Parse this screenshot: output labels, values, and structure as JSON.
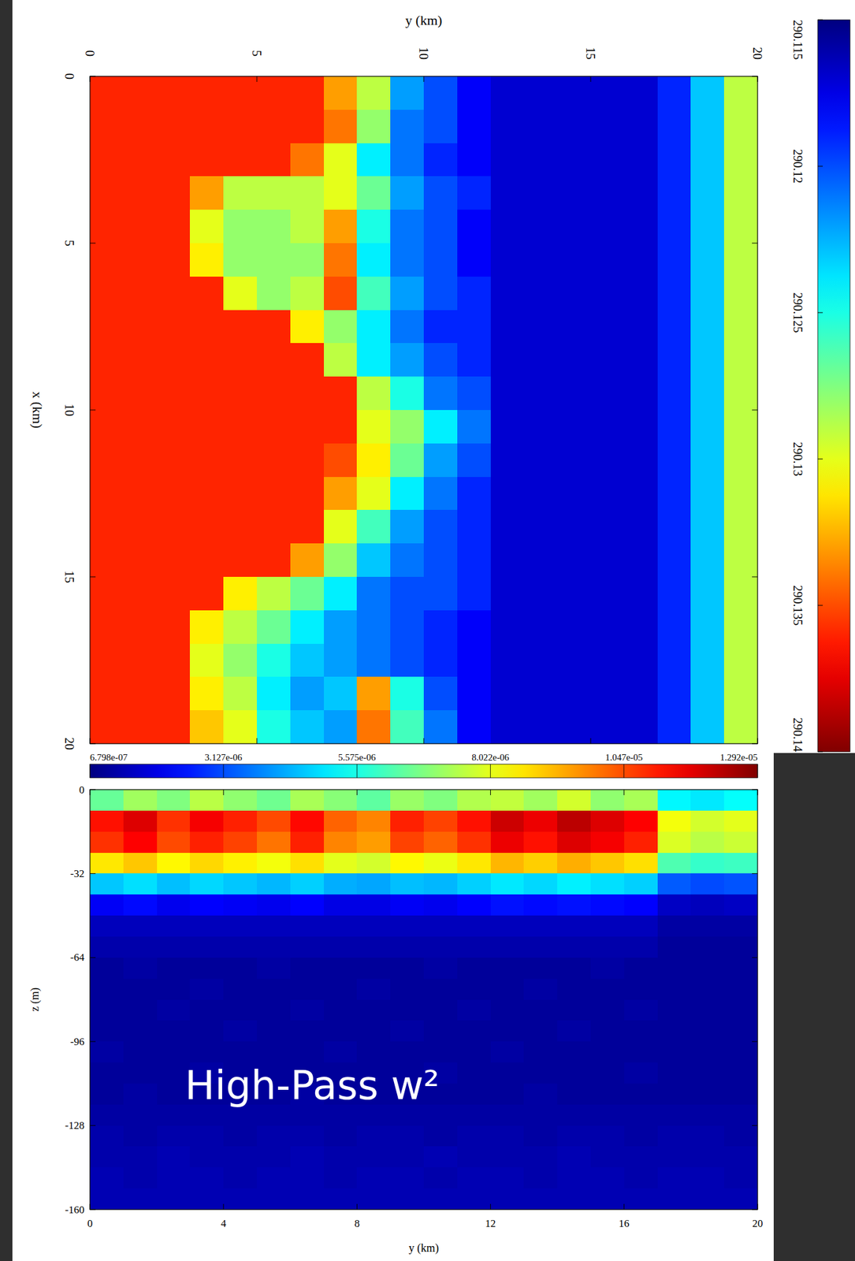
{
  "chart_data": [
    {
      "type": "heatmap",
      "x_label": "y (km)",
      "y_label": "x (km)",
      "xlim": [
        0,
        20
      ],
      "ylim": [
        20,
        0
      ],
      "xticks": [
        0,
        5,
        10,
        15,
        20
      ],
      "yticks": [
        0,
        5,
        10,
        15,
        20
      ],
      "colorbar": {
        "range": [
          290.115,
          290.14
        ],
        "ticks": [
          290.115,
          290.12,
          290.125,
          290.13,
          290.135,
          290.14
        ]
      },
      "cells": [
        [
          290.136,
          290.136,
          290.136,
          290.136,
          290.136,
          290.136,
          290.136,
          290.133,
          290.129,
          290.122,
          290.12,
          290.118,
          290.117,
          290.117,
          290.117,
          290.117,
          290.117,
          290.119,
          290.123,
          290.129
        ],
        [
          290.136,
          290.136,
          290.136,
          290.136,
          290.136,
          290.136,
          290.136,
          290.134,
          290.128,
          290.121,
          290.12,
          290.118,
          290.117,
          290.117,
          290.117,
          290.117,
          290.117,
          290.119,
          290.123,
          290.129
        ],
        [
          290.136,
          290.136,
          290.136,
          290.136,
          290.136,
          290.136,
          290.134,
          290.13,
          290.124,
          290.121,
          290.119,
          290.118,
          290.117,
          290.117,
          290.117,
          290.117,
          290.117,
          290.119,
          290.123,
          290.129
        ],
        [
          290.136,
          290.136,
          290.136,
          290.133,
          290.129,
          290.129,
          290.129,
          290.13,
          290.127,
          290.122,
          290.12,
          290.119,
          290.117,
          290.117,
          290.117,
          290.117,
          290.117,
          290.119,
          290.123,
          290.129
        ],
        [
          290.136,
          290.136,
          290.136,
          290.13,
          290.128,
          290.128,
          290.129,
          290.133,
          290.125,
          290.121,
          290.12,
          290.118,
          290.117,
          290.117,
          290.117,
          290.117,
          290.117,
          290.119,
          290.123,
          290.129
        ],
        [
          290.136,
          290.136,
          290.136,
          290.131,
          290.128,
          290.128,
          290.128,
          290.134,
          290.124,
          290.121,
          290.12,
          290.118,
          290.117,
          290.117,
          290.117,
          290.117,
          290.117,
          290.119,
          290.123,
          290.129
        ],
        [
          290.136,
          290.136,
          290.136,
          290.136,
          290.13,
          290.128,
          290.129,
          290.135,
          290.126,
          290.122,
          290.12,
          290.119,
          290.117,
          290.117,
          290.117,
          290.117,
          290.117,
          290.119,
          290.123,
          290.129
        ],
        [
          290.136,
          290.136,
          290.136,
          290.136,
          290.136,
          290.136,
          290.131,
          290.128,
          290.124,
          290.121,
          290.119,
          290.119,
          290.117,
          290.117,
          290.117,
          290.117,
          290.117,
          290.119,
          290.123,
          290.129
        ],
        [
          290.136,
          290.136,
          290.136,
          290.136,
          290.136,
          290.136,
          290.136,
          290.129,
          290.124,
          290.122,
          290.12,
          290.119,
          290.117,
          290.117,
          290.117,
          290.117,
          290.117,
          290.119,
          290.123,
          290.129
        ],
        [
          290.136,
          290.136,
          290.136,
          290.136,
          290.136,
          290.136,
          290.136,
          290.136,
          290.129,
          290.125,
          290.121,
          290.12,
          290.117,
          290.117,
          290.117,
          290.117,
          290.117,
          290.119,
          290.123,
          290.129
        ],
        [
          290.136,
          290.136,
          290.136,
          290.136,
          290.136,
          290.136,
          290.136,
          290.136,
          290.13,
          290.128,
          290.124,
          290.121,
          290.117,
          290.117,
          290.117,
          290.117,
          290.117,
          290.119,
          290.123,
          290.129
        ],
        [
          290.136,
          290.136,
          290.136,
          290.136,
          290.136,
          290.136,
          290.136,
          290.135,
          290.131,
          290.127,
          290.122,
          290.12,
          290.117,
          290.117,
          290.117,
          290.117,
          290.117,
          290.119,
          290.123,
          290.129
        ],
        [
          290.136,
          290.136,
          290.136,
          290.136,
          290.136,
          290.136,
          290.136,
          290.133,
          290.13,
          290.124,
          290.121,
          290.119,
          290.117,
          290.117,
          290.117,
          290.117,
          290.117,
          290.119,
          290.123,
          290.129
        ],
        [
          290.136,
          290.136,
          290.136,
          290.136,
          290.136,
          290.136,
          290.136,
          290.13,
          290.126,
          290.122,
          290.12,
          290.119,
          290.117,
          290.117,
          290.117,
          290.117,
          290.117,
          290.119,
          290.123,
          290.129
        ],
        [
          290.136,
          290.136,
          290.136,
          290.136,
          290.136,
          290.136,
          290.133,
          290.128,
          290.123,
          290.121,
          290.12,
          290.119,
          290.117,
          290.117,
          290.117,
          290.117,
          290.117,
          290.119,
          290.123,
          290.129
        ],
        [
          290.136,
          290.136,
          290.136,
          290.136,
          290.131,
          290.129,
          290.127,
          290.124,
          290.121,
          290.12,
          290.12,
          290.119,
          290.117,
          290.117,
          290.117,
          290.117,
          290.117,
          290.119,
          290.123,
          290.129
        ],
        [
          290.136,
          290.136,
          290.136,
          290.131,
          290.129,
          290.127,
          290.124,
          290.122,
          290.121,
          290.12,
          290.119,
          290.118,
          290.117,
          290.117,
          290.117,
          290.117,
          290.117,
          290.119,
          290.123,
          290.129
        ],
        [
          290.136,
          290.136,
          290.136,
          290.13,
          290.128,
          290.125,
          290.123,
          290.122,
          290.121,
          290.12,
          290.119,
          290.118,
          290.117,
          290.117,
          290.117,
          290.117,
          290.117,
          290.119,
          290.123,
          290.129
        ],
        [
          290.136,
          290.136,
          290.136,
          290.131,
          290.129,
          290.124,
          290.122,
          290.123,
          290.133,
          290.125,
          290.12,
          290.118,
          290.117,
          290.117,
          290.117,
          290.117,
          290.117,
          290.119,
          290.123,
          290.129
        ],
        [
          290.136,
          290.136,
          290.136,
          290.132,
          290.13,
          290.125,
          290.123,
          290.122,
          290.134,
          290.126,
          290.121,
          290.118,
          290.117,
          290.117,
          290.117,
          290.117,
          290.117,
          290.119,
          290.123,
          290.129
        ]
      ]
    },
    {
      "type": "heatmap",
      "annotation": "High-Pass w²",
      "x_label": "y (km)",
      "y_label": "z (m)",
      "xlim": [
        0,
        20
      ],
      "ylim": [
        -160,
        0
      ],
      "xticks": [
        0,
        4,
        8,
        12,
        16,
        20
      ],
      "yticks": [
        0,
        -32,
        -64,
        -96,
        -128,
        -160
      ],
      "colorbar": {
        "range": [
          6.798e-07,
          1.292e-05
        ],
        "ticks": [
          {
            "value": 6.798e-07,
            "label": "6.798e-07"
          },
          {
            "value": 3.127e-06,
            "label": "3.127e-06"
          },
          {
            "value": 5.575e-06,
            "label": "5.575e-06"
          },
          {
            "value": 8.022e-06,
            "label": "8.022e-06"
          },
          {
            "value": 1.047e-05,
            "label": "1.047e-05"
          },
          {
            "value": 1.292e-05,
            "label": "1.292e-05"
          }
        ]
      },
      "cells": [
        [
          6.5e-06,
          7.2e-06,
          6.8e-06,
          7.5e-06,
          7e-06,
          6.6e-06,
          7.3e-06,
          6.9e-06,
          6.4e-06,
          7.1e-06,
          6.8e-06,
          7.4e-06,
          7.6e-06,
          7.2e-06,
          7.8e-06,
          7e-06,
          7.3e-06,
          5.2e-06,
          5e-06,
          5.3e-06
        ],
        [
          1.12e-05,
          1.18e-05,
          1.08e-05,
          1.15e-05,
          1.1e-05,
          1.05e-05,
          1.13e-05,
          1.02e-05,
          9.8e-06,
          1.1e-05,
          1.06e-05,
          1.12e-05,
          1.2e-05,
          1.16e-05,
          1.22e-05,
          1.18e-05,
          1.14e-05,
          8.2e-06,
          7.8e-06,
          8e-06
        ],
        [
          1.08e-05,
          1.14e-05,
          1.05e-05,
          1.1e-05,
          1.06e-05,
          1e-05,
          1.1e-05,
          9.8e-06,
          9.5e-06,
          1.06e-05,
          1.02e-05,
          1.08e-05,
          1.16e-05,
          1.12e-05,
          1.18e-05,
          1.15e-05,
          1.1e-05,
          7.9e-06,
          7.5e-06,
          7.7e-06
        ],
        [
          8.6e-06,
          9e-06,
          8.4e-06,
          8.8e-06,
          8.5e-06,
          8.2e-06,
          8.7e-06,
          8e-06,
          7.8e-06,
          8.4e-06,
          8.1e-06,
          8.6e-06,
          9.2e-06,
          8.9e-06,
          9.3e-06,
          9e-06,
          8.7e-06,
          6.2e-06,
          5.9e-06,
          6e-06
        ],
        [
          4.6e-06,
          4.9e-06,
          4.5e-06,
          4.8e-06,
          4.6e-06,
          4.4e-06,
          4.7e-06,
          4.3e-06,
          4.2e-06,
          4.5e-06,
          4.4e-06,
          4.7e-06,
          5e-06,
          4.8e-06,
          5.1e-06,
          4.9e-06,
          4.7e-06,
          3.3e-06,
          3.1e-06,
          3.2e-06
        ],
        [
          2.1e-06,
          2.3e-06,
          2e-06,
          2.2e-06,
          2.1e-06,
          2e-06,
          2.2e-06,
          1.9e-06,
          1.9e-06,
          2.1e-06,
          2e-06,
          2.2e-06,
          2.4e-06,
          2.3e-06,
          2.4e-06,
          2.3e-06,
          2.2e-06,
          1.5e-06,
          1.4e-06,
          1.5e-06
        ],
        [
          1.4e-06,
          1.4e-06,
          1.4e-06,
          1.4e-06,
          1.4e-06,
          1.4e-06,
          1.4e-06,
          1.4e-06,
          1.4e-06,
          1.4e-06,
          1.4e-06,
          1.4e-06,
          1.4e-06,
          1.4e-06,
          1.4e-06,
          1.4e-06,
          1.4e-06,
          1.1e-06,
          1.1e-06,
          1.1e-06
        ],
        [
          1.2e-06,
          1.2e-06,
          1.2e-06,
          1.2e-06,
          1.2e-06,
          1.2e-06,
          1.2e-06,
          1.2e-06,
          1.2e-06,
          1.2e-06,
          1.2e-06,
          1.2e-06,
          1.2e-06,
          1.2e-06,
          1.2e-06,
          1.2e-06,
          1.2e-06,
          1e-06,
          1e-06,
          1e-06
        ],
        [
          1e-06,
          1.1e-06,
          1e-06,
          1e-06,
          1e-06,
          1.1e-06,
          1e-06,
          1e-06,
          1e-06,
          1e-06,
          1.1e-06,
          1e-06,
          1e-06,
          1e-06,
          1e-06,
          1.1e-06,
          1e-06,
          1e-06,
          1e-06,
          1e-06
        ],
        [
          1e-06,
          1e-06,
          1e-06,
          1.1e-06,
          1e-06,
          1e-06,
          1e-06,
          1e-06,
          1.1e-06,
          1e-06,
          1e-06,
          1e-06,
          1e-06,
          1.1e-06,
          1e-06,
          1e-06,
          1e-06,
          1e-06,
          1e-06,
          1e-06
        ],
        [
          1e-06,
          1e-06,
          1.1e-06,
          1e-06,
          1e-06,
          1e-06,
          1.1e-06,
          1e-06,
          1e-06,
          1e-06,
          1e-06,
          1.1e-06,
          1e-06,
          1e-06,
          1e-06,
          1e-06,
          1.1e-06,
          1e-06,
          1e-06,
          1e-06
        ],
        [
          1e-06,
          1e-06,
          1e-06,
          1e-06,
          1.1e-06,
          1e-06,
          1e-06,
          1e-06,
          1e-06,
          1.1e-06,
          1e-06,
          1e-06,
          1e-06,
          1e-06,
          1.1e-06,
          1e-06,
          1e-06,
          1e-06,
          1e-06,
          1e-06
        ],
        [
          1.1e-06,
          1e-06,
          1e-06,
          1e-06,
          1e-06,
          1e-06,
          1e-06,
          1.1e-06,
          1e-06,
          1e-06,
          1e-06,
          1e-06,
          1.1e-06,
          1e-06,
          1e-06,
          1e-06,
          1e-06,
          1e-06,
          1e-06,
          1e-06
        ],
        [
          1e-06,
          1e-06,
          1e-06,
          1.1e-06,
          1e-06,
          1e-06,
          1e-06,
          1e-06,
          1e-06,
          1e-06,
          1.1e-06,
          1e-06,
          1e-06,
          1e-06,
          1e-06,
          1e-06,
          1.1e-06,
          1e-06,
          1e-06,
          1e-06
        ],
        [
          1e-06,
          1.1e-06,
          1e-06,
          1e-06,
          1e-06,
          1e-06,
          1.1e-06,
          1e-06,
          1e-06,
          1e-06,
          1e-06,
          1e-06,
          1e-06,
          1.1e-06,
          1e-06,
          1e-06,
          1e-06,
          1e-06,
          1e-06,
          1e-06
        ],
        [
          1.1e-06,
          1.1e-06,
          1.1e-06,
          1.1e-06,
          1.1e-06,
          1.1e-06,
          1.1e-06,
          1.1e-06,
          1.1e-06,
          1.1e-06,
          1.1e-06,
          1.1e-06,
          1.1e-06,
          1.1e-06,
          1.1e-06,
          1.1e-06,
          1.1e-06,
          1.1e-06,
          1.1e-06,
          1.1e-06
        ],
        [
          1.2e-06,
          1.1e-06,
          1.2e-06,
          1.2e-06,
          1.1e-06,
          1.2e-06,
          1.2e-06,
          1.1e-06,
          1.2e-06,
          1.2e-06,
          1.1e-06,
          1.2e-06,
          1.2e-06,
          1.1e-06,
          1.2e-06,
          1.2e-06,
          1.1e-06,
          1.2e-06,
          1.2e-06,
          1.1e-06
        ],
        [
          1.2e-06,
          1.2e-06,
          1.3e-06,
          1.2e-06,
          1.2e-06,
          1.2e-06,
          1.3e-06,
          1.2e-06,
          1.2e-06,
          1.2e-06,
          1.3e-06,
          1.2e-06,
          1.2e-06,
          1.2e-06,
          1.3e-06,
          1.2e-06,
          1.2e-06,
          1.2e-06,
          1.2e-06,
          1.2e-06
        ],
        [
          1.3e-06,
          1.2e-06,
          1.3e-06,
          1.3e-06,
          1.2e-06,
          1.3e-06,
          1.3e-06,
          1.2e-06,
          1.3e-06,
          1.3e-06,
          1.2e-06,
          1.3e-06,
          1.3e-06,
          1.2e-06,
          1.3e-06,
          1.3e-06,
          1.2e-06,
          1.3e-06,
          1.3e-06,
          1.2e-06
        ],
        [
          1.3e-06,
          1.3e-06,
          1.3e-06,
          1.3e-06,
          1.3e-06,
          1.3e-06,
          1.3e-06,
          1.3e-06,
          1.3e-06,
          1.3e-06,
          1.3e-06,
          1.3e-06,
          1.3e-06,
          1.3e-06,
          1.3e-06,
          1.3e-06,
          1.3e-06,
          1.3e-06,
          1.3e-06,
          1.3e-06
        ]
      ]
    }
  ]
}
